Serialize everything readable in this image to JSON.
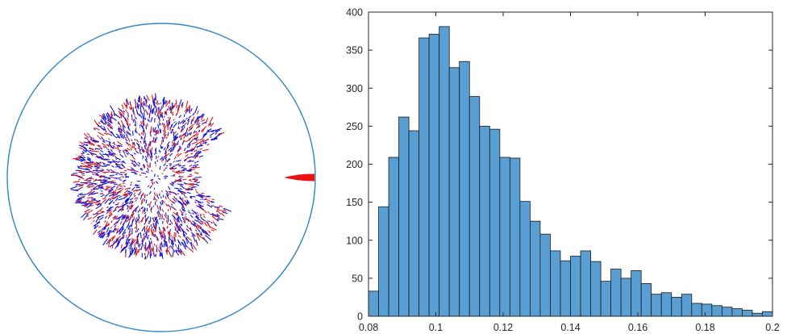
{
  "colors": {
    "circle": "#2f87c6",
    "bar_fill": "#5a9fd4",
    "bar_edge": "#1a1a1a",
    "axes": "#262626",
    "particles_a": "#1515d6",
    "particles_b": "#dd1a1a",
    "particles_c": "#ffffff",
    "arrow": "#ee1111"
  },
  "chart_data": [
    {
      "type": "scatter",
      "panel": "left",
      "title": "",
      "description_items": [
        "circular boundary",
        "cluster of oriented particles",
        "red needle marker"
      ],
      "grid": false
    },
    {
      "type": "bar",
      "panel": "right",
      "title": "",
      "xlabel": "",
      "ylabel": "",
      "xlim": [
        0.08,
        0.2
      ],
      "ylim": [
        0,
        400
      ],
      "bin_start": 0.08,
      "bin_width": 0.003,
      "values": [
        33,
        144,
        209,
        262,
        244,
        366,
        371,
        381,
        327,
        335,
        289,
        250,
        246,
        209,
        208,
        151,
        125,
        108,
        86,
        73,
        79,
        86,
        72,
        46,
        62,
        50,
        60,
        43,
        29,
        31,
        25,
        29,
        17,
        16,
        14,
        12,
        10,
        8,
        4,
        6
      ],
      "xticks": [
        "0.08",
        "0.1",
        "0.12",
        "0.14",
        "0.16",
        "0.18",
        "0.2"
      ],
      "yticks": [
        "0",
        "50",
        "100",
        "150",
        "200",
        "250",
        "300",
        "350",
        "400"
      ],
      "grid": false,
      "legend": "none"
    }
  ]
}
